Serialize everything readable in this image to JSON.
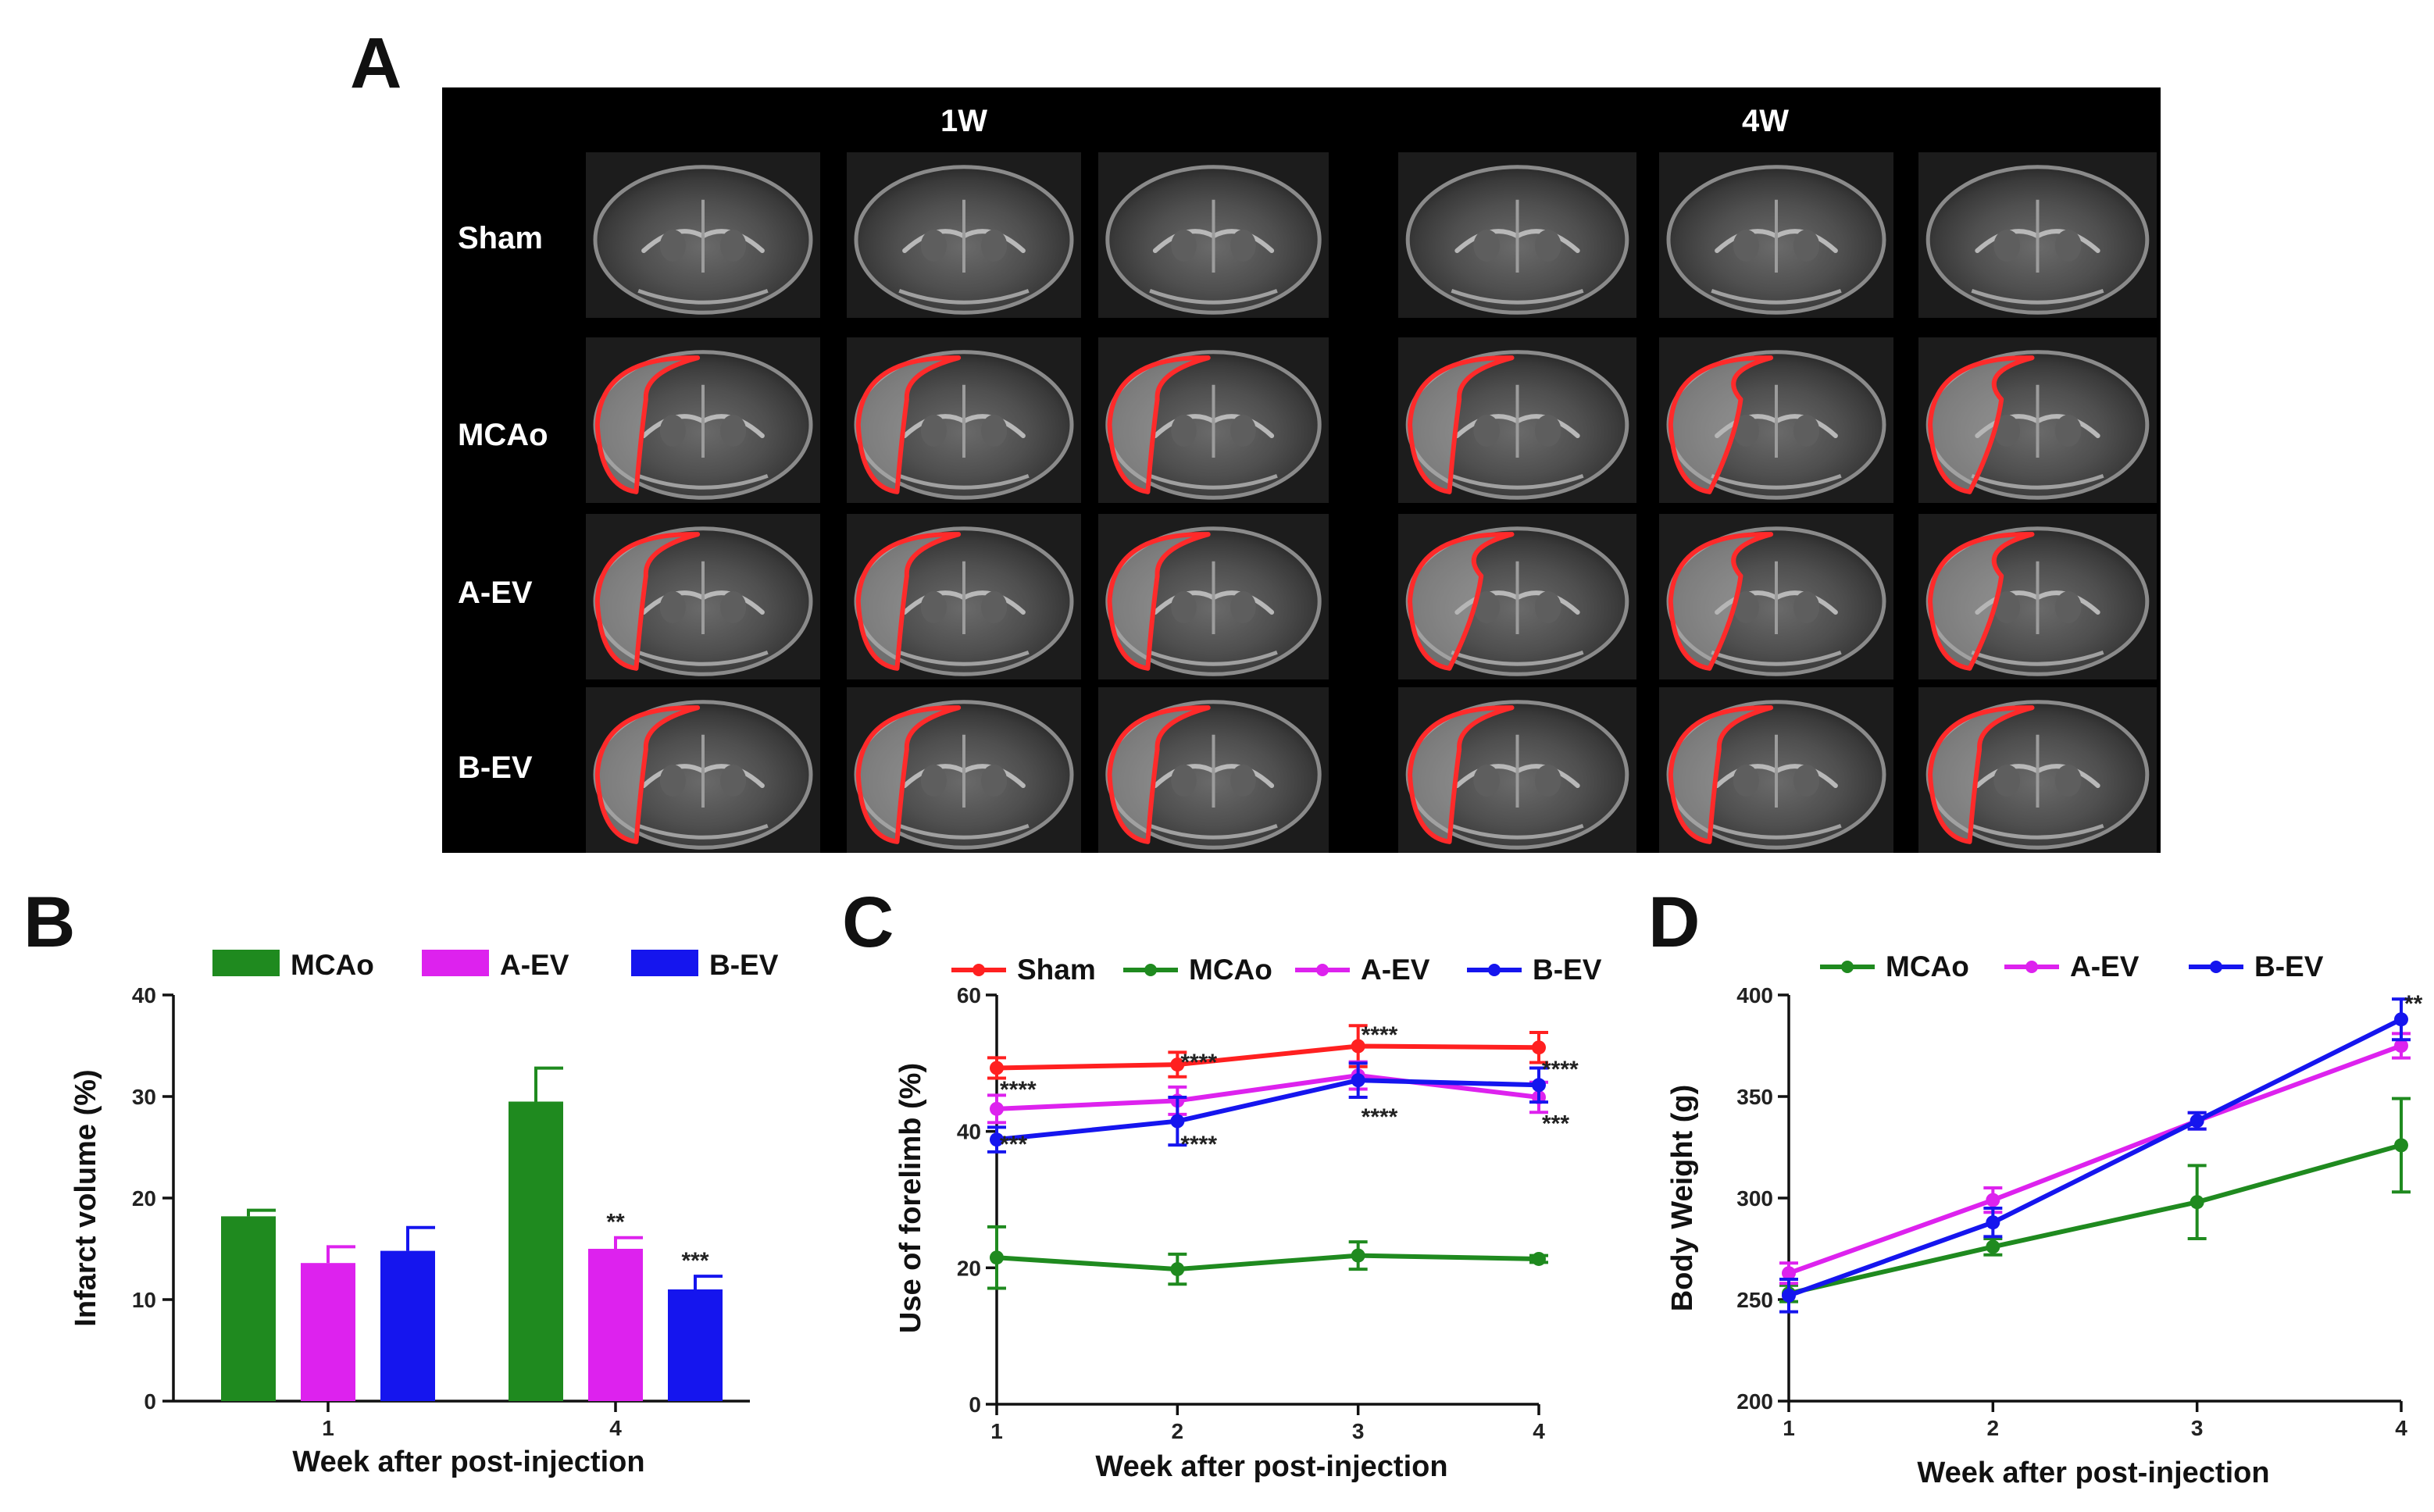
{
  "panel_a": {
    "letter": "A",
    "column_groups": [
      "1W",
      "4W"
    ],
    "row_labels": [
      "Sham",
      "MCAo",
      "A-EV",
      "B-EV"
    ],
    "outline_color": "#ff2a2a"
  },
  "colors": {
    "Sham": "#ff2020",
    "MCAo": "#1f8a1f",
    "A-EV": "#dd22ee",
    "B-EV": "#1515ee"
  },
  "chart_data": [
    {
      "panel": "B",
      "type": "bar",
      "title": "",
      "xlabel": "Week after post-injection",
      "ylabel": "Infarct volume (%)",
      "categories": [
        "1",
        "4"
      ],
      "ylim": [
        0,
        40
      ],
      "yticks": [
        0,
        10,
        20,
        30,
        40
      ],
      "legend": [
        "MCAo",
        "A-EV",
        "B-EV"
      ],
      "legend_position": "top",
      "series": [
        {
          "name": "MCAo",
          "values": [
            18.2,
            29.5
          ],
          "errors": [
            0.6,
            3.3
          ]
        },
        {
          "name": "A-EV",
          "values": [
            13.6,
            15.0
          ],
          "errors": [
            1.6,
            1.1
          ]
        },
        {
          "name": "B-EV",
          "values": [
            14.8,
            11.0
          ],
          "errors": [
            2.3,
            1.3
          ]
        }
      ],
      "annotations": [
        {
          "category": "4",
          "series": "A-EV",
          "text": "**"
        },
        {
          "category": "4",
          "series": "B-EV",
          "text": "***"
        }
      ]
    },
    {
      "panel": "C",
      "type": "line",
      "title": "",
      "xlabel": "Week after post-injection",
      "ylabel": "Use of forelimb (%)",
      "x": [
        1,
        2,
        3,
        4
      ],
      "ylim": [
        0,
        60
      ],
      "yticks": [
        0,
        20,
        40,
        60
      ],
      "legend": [
        "Sham",
        "MCAo",
        "A-EV",
        "B-EV"
      ],
      "legend_position": "top",
      "series": [
        {
          "name": "Sham",
          "values": [
            49.3,
            49.8,
            52.5,
            52.3
          ],
          "errors": [
            1.5,
            1.8,
            3.0,
            2.2
          ]
        },
        {
          "name": "MCAo",
          "values": [
            21.5,
            19.8,
            21.8,
            21.3
          ],
          "errors": [
            4.5,
            2.2,
            2.0,
            0.5
          ]
        },
        {
          "name": "A-EV",
          "values": [
            43.3,
            44.5,
            48.2,
            45.0
          ],
          "errors": [
            2.0,
            2.0,
            2.0,
            2.2
          ]
        },
        {
          "name": "B-EV",
          "values": [
            38.8,
            41.5,
            47.5,
            46.8
          ],
          "errors": [
            1.8,
            3.5,
            2.5,
            2.5
          ]
        }
      ],
      "annotations": [
        {
          "x": 1,
          "y": 45,
          "text": "****"
        },
        {
          "x": 1,
          "y": 37,
          "text": "***"
        },
        {
          "x": 2,
          "y": 49,
          "text": "****"
        },
        {
          "x": 2,
          "y": 37,
          "text": "****"
        },
        {
          "x": 3,
          "y": 53,
          "text": "****"
        },
        {
          "x": 3,
          "y": 41,
          "text": "****"
        },
        {
          "x": 4,
          "y": 48,
          "text": "****"
        },
        {
          "x": 4,
          "y": 40,
          "text": "***"
        }
      ]
    },
    {
      "panel": "D",
      "type": "line",
      "title": "",
      "xlabel": "Week after post-injection",
      "ylabel": "Body Weight  (g)",
      "x": [
        1,
        2,
        3,
        4
      ],
      "ylim": [
        200,
        400
      ],
      "yticks": [
        200,
        250,
        300,
        350,
        400
      ],
      "legend": [
        "MCAo",
        "A-EV",
        "B-EV"
      ],
      "legend_position": "top",
      "series": [
        {
          "name": "MCAo",
          "values": [
            253,
            276,
            298,
            326
          ],
          "errors": [
            4,
            4,
            18,
            23
          ]
        },
        {
          "name": "A-EV",
          "values": [
            263,
            299,
            338,
            375
          ],
          "errors": [
            5,
            6,
            4,
            6
          ]
        },
        {
          "name": "B-EV",
          "values": [
            252,
            288,
            338,
            388
          ],
          "errors": [
            8,
            7,
            4,
            10
          ]
        }
      ],
      "annotations": [
        {
          "x": 4,
          "y": 392,
          "text": "**"
        }
      ]
    }
  ]
}
